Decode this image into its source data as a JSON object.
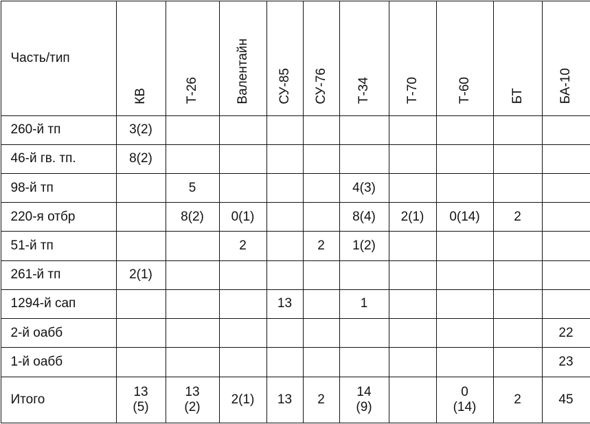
{
  "table": {
    "header": [
      "Часть/тип",
      "КВ",
      "Т-26",
      "Валентайн",
      "СУ-85",
      "СУ-76",
      "Т-34",
      "Т-70",
      "Т-60",
      "БТ",
      "БА-10"
    ],
    "rows": [
      [
        "260-й тп",
        "3(2)",
        null,
        null,
        null,
        null,
        null,
        null,
        null,
        null,
        null
      ],
      [
        "46-й гв. тп.",
        "8(2)",
        null,
        null,
        null,
        null,
        null,
        null,
        null,
        null,
        null
      ],
      [
        "98-й тп",
        null,
        "5",
        null,
        null,
        null,
        "4(3)",
        null,
        null,
        null,
        null
      ],
      [
        "220-я отбр",
        null,
        "8(2)",
        "0(1)",
        null,
        null,
        "8(4)",
        "2(1)",
        "0(14)",
        "2",
        null
      ],
      [
        "51-й тп",
        null,
        null,
        "2",
        null,
        "2",
        "1(2)",
        null,
        null,
        null,
        null
      ],
      [
        "261-й тп",
        "2(1)",
        null,
        null,
        null,
        null,
        null,
        null,
        null,
        null,
        null
      ],
      [
        "1294-й сап",
        null,
        null,
        null,
        "13",
        null,
        "1",
        null,
        null,
        null,
        null
      ],
      [
        "2-й оабб",
        null,
        null,
        null,
        null,
        null,
        null,
        null,
        null,
        null,
        "22"
      ],
      [
        "1-й оабб",
        null,
        null,
        null,
        null,
        null,
        null,
        null,
        null,
        null,
        "23"
      ],
      [
        "Итого",
        "13\n(5)",
        "13\n(2)",
        "2(1)",
        "13",
        "2",
        "14\n(9)",
        null,
        "0\n(14)",
        "2",
        "45"
      ]
    ]
  }
}
